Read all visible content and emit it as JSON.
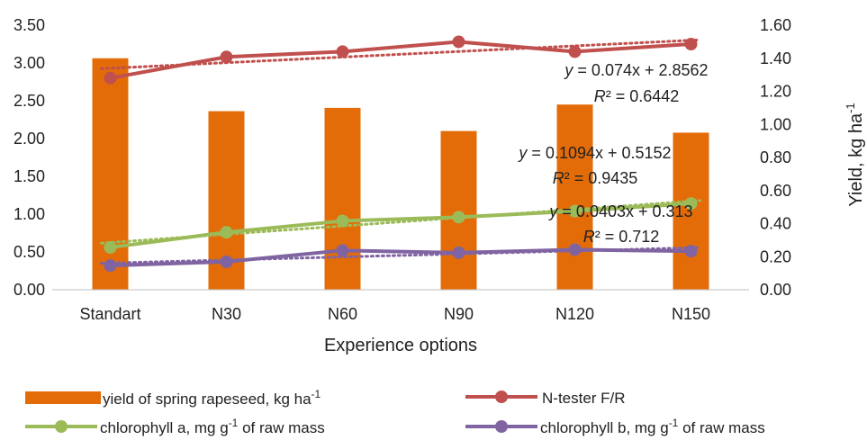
{
  "chart_data": {
    "type": "bar",
    "categories": [
      "Standart",
      "N30",
      "N60",
      "N90",
      "N120",
      "N150"
    ],
    "xlabel": "Experience options",
    "ylabel_right": {
      "text": "Yield,  kg ha",
      "sup": "-1"
    },
    "y_left": {
      "min": 0,
      "max": 3.5,
      "step": 0.5,
      "tick_labels": [
        "0.00",
        "0.50",
        "1.00",
        "1.50",
        "2.00",
        "2.50",
        "3.00",
        "3.50"
      ]
    },
    "y_right": {
      "min": 0,
      "max": 1.6,
      "step": 0.2,
      "tick_labels": [
        "0.00",
        "0.20",
        "0.40",
        "0.60",
        "0.80",
        "1.00",
        "1.20",
        "1.40",
        "1.60"
      ]
    },
    "bars": {
      "name": "yield of spring rapeseed, kg ha",
      "name_sup": "-1",
      "axis": "right",
      "color": "#E36C09",
      "values": [
        1.4,
        1.08,
        1.1,
        0.96,
        1.12,
        0.95
      ]
    },
    "series": [
      {
        "name": "N-tester F/R",
        "color": "#C0504D",
        "axis": "left",
        "values": [
          2.8,
          3.08,
          3.15,
          3.28,
          3.15,
          3.25
        ],
        "trend": {
          "slope": 0.074,
          "intercept": 2.8562
        }
      },
      {
        "name": "chlorophyll a, mg g",
        "name_sup": "-1",
        "name_tail": " of raw mass",
        "color": "#9BBB59",
        "axis": "left",
        "values": [
          0.56,
          0.76,
          0.91,
          0.96,
          1.04,
          1.14
        ],
        "trend": {
          "slope": 0.1094,
          "intercept": 0.5152
        }
      },
      {
        "name": "chlorophyll b, mg g",
        "name_sup": "-1",
        "name_tail": " of raw mass",
        "color": "#8064A2",
        "axis": "left",
        "values": [
          0.32,
          0.37,
          0.52,
          0.49,
          0.53,
          0.51
        ],
        "trend": {
          "slope": 0.0403,
          "intercept": 0.313
        }
      }
    ],
    "trendline_labels": [
      {
        "y_prefix": "y",
        "eq": " = 0.074x + 2.8562",
        "r_prefix": "R",
        "r_text": "² = 0.6442"
      },
      {
        "y_prefix": "y",
        "eq": " = 0.1094x + 0.5152",
        "r_prefix": "R",
        "r_text": "² = 0.9435"
      },
      {
        "y_prefix": "y",
        "eq": " = 0.0403x + 0.313",
        "r_prefix": "R",
        "r_text": "² = 0.712"
      }
    ],
    "legend_position": "bottom",
    "grid": false
  }
}
